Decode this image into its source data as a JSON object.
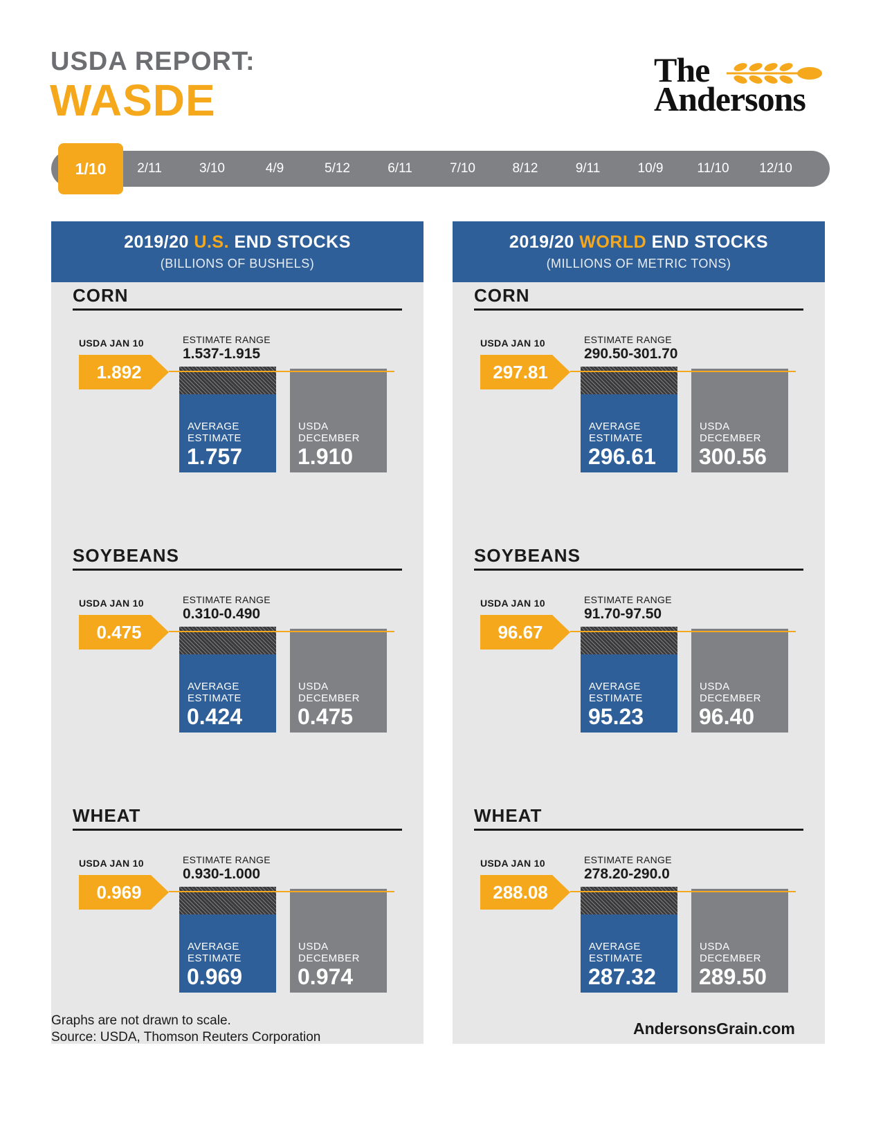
{
  "header": {
    "subtitle": "USDA REPORT:",
    "title": "WASDE",
    "logo_line1": "The",
    "logo_line2": "Andersons"
  },
  "timeline": {
    "active": "1/10",
    "dates": [
      "2/11",
      "3/10",
      "4/9",
      "5/12",
      "6/11",
      "7/10",
      "8/12",
      "9/11",
      "10/9",
      "11/10",
      "12/10"
    ]
  },
  "labels": {
    "usda_jan": "USDA JAN 10",
    "estimate_range": "ESTIMATE RANGE",
    "average": "AVERAGE",
    "estimate": "ESTIMATE",
    "usda": "USDA",
    "december": "DECEMBER"
  },
  "panels": [
    {
      "title_pre": "2019/20 ",
      "title_hl": "U.S.",
      "title_post": " END STOCKS",
      "subtitle": "(BILLIONS OF BUSHELS)"
    },
    {
      "title_pre": "2019/20 ",
      "title_hl": "WORLD",
      "title_post": " END STOCKS",
      "subtitle": "(MILLIONS OF METRIC TONS)"
    }
  ],
  "chart_data": [
    {
      "type": "bar",
      "title": "2019/20 U.S. END STOCKS",
      "subtitle": "(BILLIONS OF BUSHELS)",
      "crops": [
        {
          "name": "CORN",
          "usda_jan_10": "1.892",
          "estimate_range": "1.537-1.915",
          "average_estimate": "1.757",
          "usda_december": "1.910"
        },
        {
          "name": "SOYBEANS",
          "usda_jan_10": "0.475",
          "estimate_range": "0.310-0.490",
          "average_estimate": "0.424",
          "usda_december": "0.475"
        },
        {
          "name": "WHEAT",
          "usda_jan_10": "0.969",
          "estimate_range": "0.930-1.000",
          "average_estimate": "0.969",
          "usda_december": "0.974"
        }
      ]
    },
    {
      "type": "bar",
      "title": "2019/20 WORLD END STOCKS",
      "subtitle": "(MILLIONS OF METRIC TONS)",
      "crops": [
        {
          "name": "CORN",
          "usda_jan_10": "297.81",
          "estimate_range": "290.50-301.70",
          "average_estimate": "296.61",
          "usda_december": "300.56"
        },
        {
          "name": "SOYBEANS",
          "usda_jan_10": "96.67",
          "estimate_range": "91.70-97.50",
          "average_estimate": "95.23",
          "usda_december": "96.40"
        },
        {
          "name": "WHEAT",
          "usda_jan_10": "288.08",
          "estimate_range": "278.20-290.0",
          "average_estimate": "287.32",
          "usda_december": "289.50"
        }
      ]
    }
  ],
  "footer": {
    "note": "Graphs are not drawn to scale.",
    "source": "Source: USDA, Thomson Reuters Corporation",
    "url": "AndersonsGrain.com"
  },
  "colors": {
    "orange": "#f5a81c",
    "blue": "#2f5f99",
    "gray": "#808184",
    "panel_bg": "#e7e7e8"
  }
}
